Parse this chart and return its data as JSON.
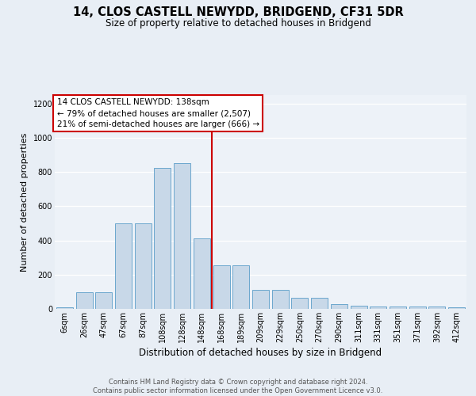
{
  "title": "14, CLOS CASTELL NEWYDD, BRIDGEND, CF31 5DR",
  "subtitle": "Size of property relative to detached houses in Bridgend",
  "xlabel": "Distribution of detached houses by size in Bridgend",
  "ylabel": "Number of detached properties",
  "bin_labels": [
    "6sqm",
    "26sqm",
    "47sqm",
    "67sqm",
    "87sqm",
    "108sqm",
    "128sqm",
    "148sqm",
    "168sqm",
    "189sqm",
    "209sqm",
    "229sqm",
    "250sqm",
    "270sqm",
    "290sqm",
    "311sqm",
    "331sqm",
    "351sqm",
    "371sqm",
    "392sqm",
    "412sqm"
  ],
  "bar_heights": [
    10,
    95,
    95,
    500,
    500,
    825,
    850,
    410,
    255,
    255,
    110,
    110,
    65,
    65,
    30,
    20,
    12,
    12,
    12,
    12,
    10
  ],
  "bar_color": "#c8d8e8",
  "bar_edge_color": "#5a9dc8",
  "vline_color": "#cc0000",
  "vline_x": 7.5,
  "annotation_text": "14 CLOS CASTELL NEWYDD: 138sqm\n← 79% of detached houses are smaller (2,507)\n21% of semi-detached houses are larger (666) →",
  "annotation_box_color": "#ffffff",
  "annotation_box_edge": "#cc0000",
  "ylim": [
    0,
    1250
  ],
  "yticks": [
    0,
    200,
    400,
    600,
    800,
    1000,
    1200
  ],
  "footer_line1": "Contains HM Land Registry data © Crown copyright and database right 2024.",
  "footer_line2": "Contains public sector information licensed under the Open Government Licence v3.0.",
  "bg_color": "#e8eef5",
  "plot_bg_color": "#edf2f8",
  "title_fontsize": 10.5,
  "subtitle_fontsize": 8.5,
  "ylabel_fontsize": 8,
  "xlabel_fontsize": 8.5,
  "tick_fontsize": 7,
  "annot_fontsize": 7.5,
  "footer_fontsize": 6
}
